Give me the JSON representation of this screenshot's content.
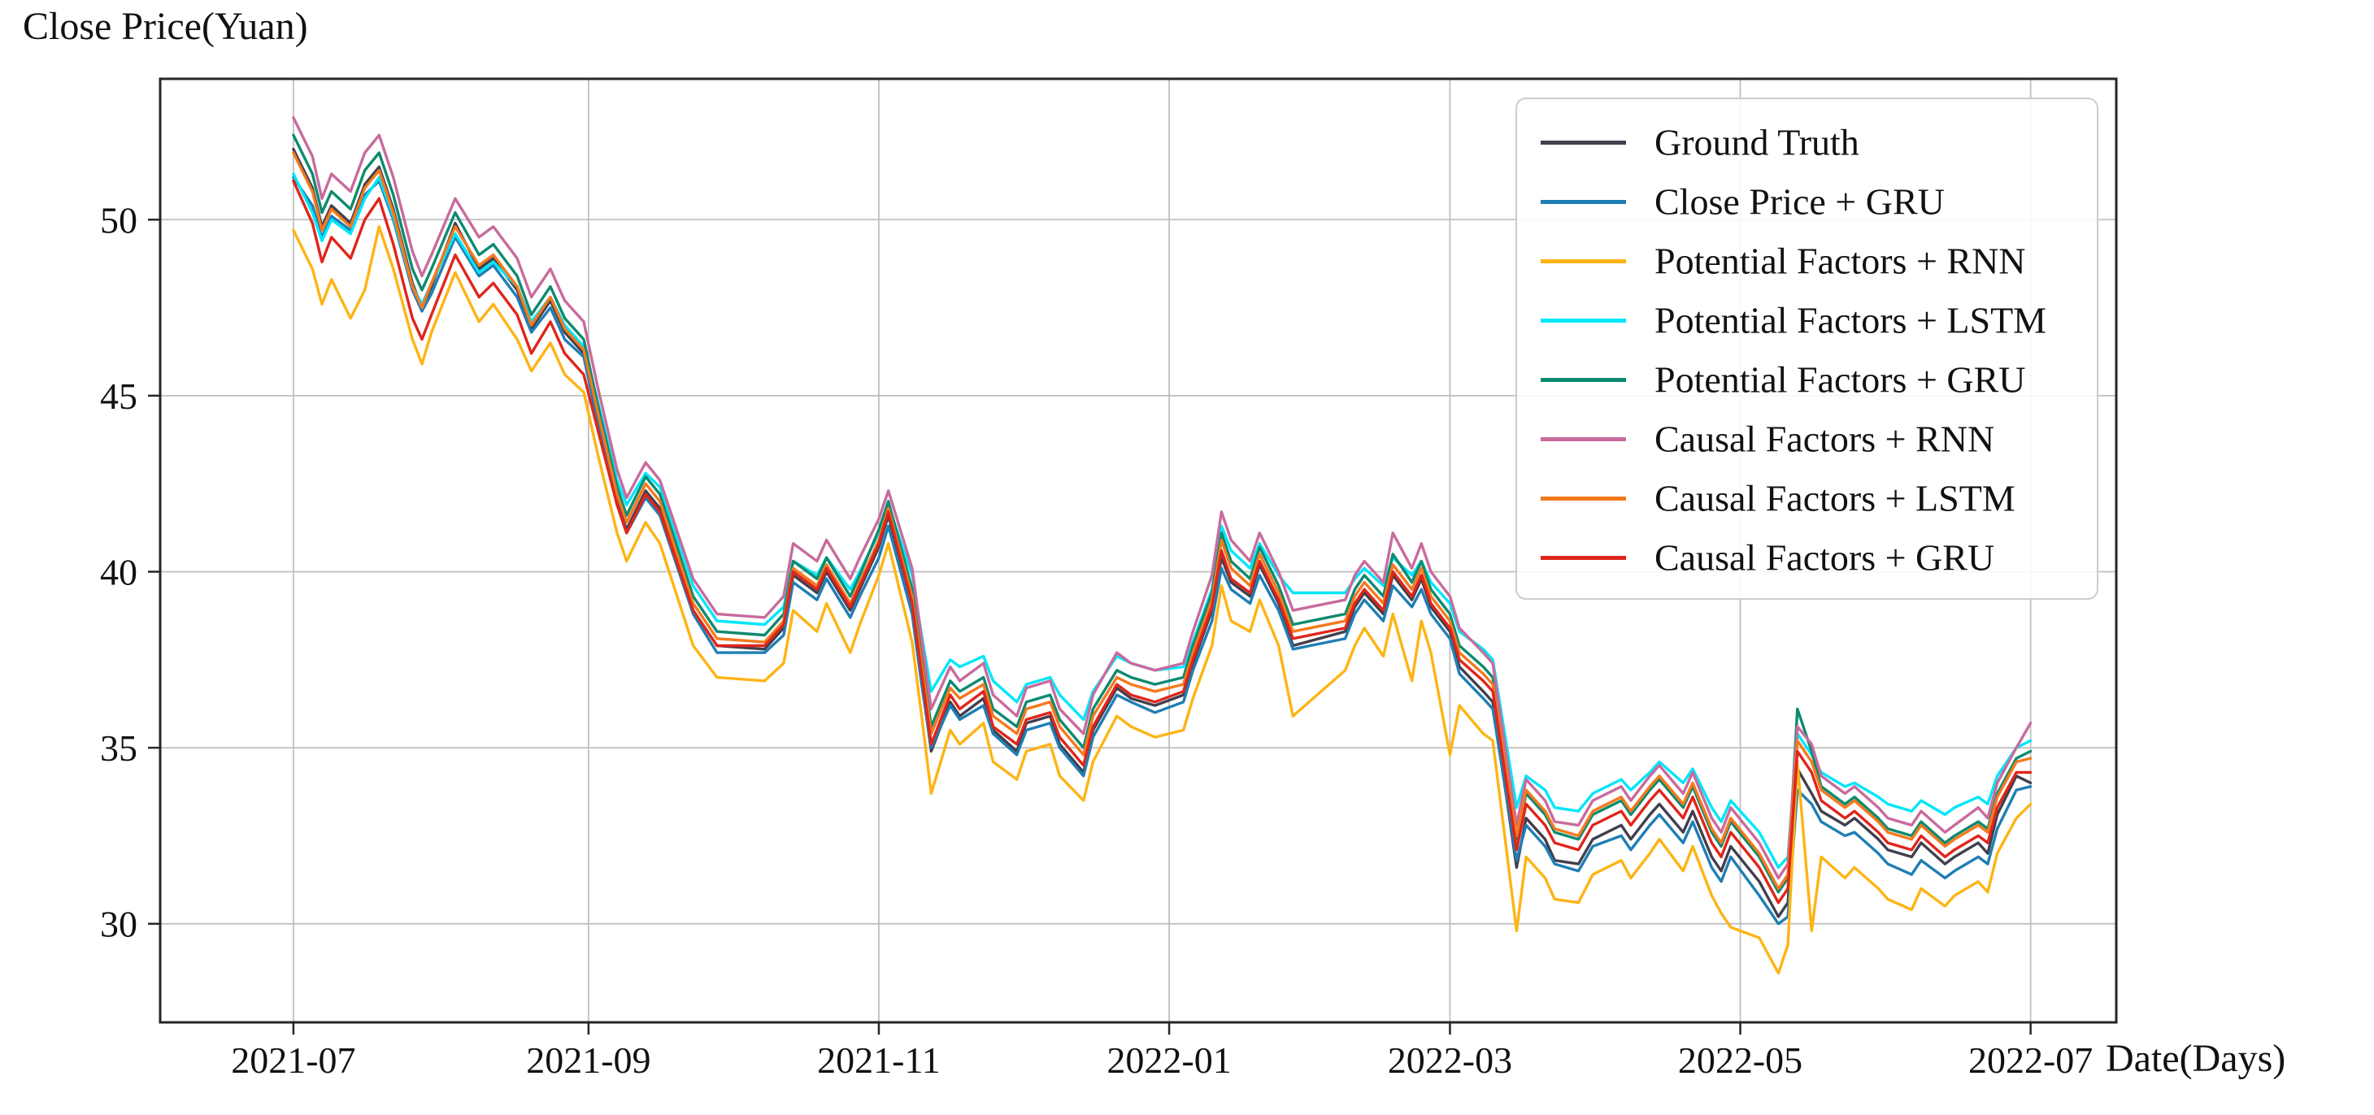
{
  "figure": {
    "kind": "static-line-chart-figure",
    "background": "#ffffff",
    "grid_color": "#bfbfbf",
    "spine_color": "#262626",
    "legend_border_color": "#cccccc",
    "legend_background": "#ffffff"
  },
  "chart_data": {
    "type": "line",
    "title": "",
    "ylabel": "Close Price(Yuan)",
    "xlabel": "Date(Days)",
    "ylim": [
      27.2,
      54.0
    ],
    "xlim": [
      "2021-06-03",
      "2022-07-19"
    ],
    "grid": true,
    "legend_position": "upper right",
    "y_ticks": [
      30,
      35,
      40,
      45,
      50
    ],
    "x_ticks": [
      {
        "label": "2021-07",
        "date": "2021-07-01"
      },
      {
        "label": "2021-09",
        "date": "2021-09-01"
      },
      {
        "label": "2021-11",
        "date": "2021-11-01"
      },
      {
        "label": "2022-01",
        "date": "2022-01-01"
      },
      {
        "label": "2022-03",
        "date": "2022-03-01"
      },
      {
        "label": "2022-05",
        "date": "2022-05-01"
      },
      {
        "label": "2022-07",
        "date": "2022-07-01"
      }
    ],
    "x": [
      "2021-07-01",
      "2021-07-05",
      "2021-07-07",
      "2021-07-09",
      "2021-07-13",
      "2021-07-16",
      "2021-07-19",
      "2021-07-22",
      "2021-07-26",
      "2021-07-28",
      "2021-07-30",
      "2021-08-04",
      "2021-08-09",
      "2021-08-12",
      "2021-08-17",
      "2021-08-20",
      "2021-08-24",
      "2021-08-27",
      "2021-08-31",
      "2021-09-03",
      "2021-09-07",
      "2021-09-09",
      "2021-09-13",
      "2021-09-16",
      "2021-09-23",
      "2021-09-28",
      "2021-10-08",
      "2021-10-12",
      "2021-10-14",
      "2021-10-19",
      "2021-10-21",
      "2021-10-26",
      "2021-10-28",
      "2021-11-01",
      "2021-11-03",
      "2021-11-08",
      "2021-11-10",
      "2021-11-12",
      "2021-11-16",
      "2021-11-18",
      "2021-11-23",
      "2021-11-25",
      "2021-11-30",
      "2021-12-02",
      "2021-12-07",
      "2021-12-09",
      "2021-12-14",
      "2021-12-16",
      "2021-12-21",
      "2021-12-24",
      "2021-12-29",
      "2022-01-04",
      "2022-01-06",
      "2022-01-10",
      "2022-01-12",
      "2022-01-14",
      "2022-01-18",
      "2022-01-20",
      "2022-01-24",
      "2022-01-27",
      "2022-02-07",
      "2022-02-09",
      "2022-02-11",
      "2022-02-15",
      "2022-02-17",
      "2022-02-21",
      "2022-02-23",
      "2022-02-25",
      "2022-03-01",
      "2022-03-03",
      "2022-03-08",
      "2022-03-10",
      "2022-03-15",
      "2022-03-17",
      "2022-03-21",
      "2022-03-23",
      "2022-03-28",
      "2022-03-31",
      "2022-04-06",
      "2022-04-08",
      "2022-04-12",
      "2022-04-14",
      "2022-04-19",
      "2022-04-21",
      "2022-04-25",
      "2022-04-27",
      "2022-04-29",
      "2022-05-05",
      "2022-05-09",
      "2022-05-11",
      "2022-05-13",
      "2022-05-16",
      "2022-05-18",
      "2022-05-23",
      "2022-05-25",
      "2022-05-30",
      "2022-06-01",
      "2022-06-06",
      "2022-06-08",
      "2022-06-13",
      "2022-06-15",
      "2022-06-20",
      "2022-06-22",
      "2022-06-24",
      "2022-06-28",
      "2022-07-01"
    ],
    "series": [
      {
        "name": "Ground Truth",
        "color": "#413f4d",
        "values": [
          52.0,
          50.9,
          49.8,
          50.4,
          49.9,
          51.0,
          51.5,
          50.3,
          48.2,
          47.5,
          48.1,
          49.9,
          48.6,
          48.9,
          48.0,
          46.9,
          47.7,
          46.8,
          46.2,
          44.3,
          42.0,
          41.2,
          42.3,
          41.8,
          38.9,
          37.9,
          37.8,
          38.4,
          39.9,
          39.4,
          40.0,
          38.9,
          39.5,
          40.7,
          41.6,
          38.9,
          36.9,
          34.9,
          36.3,
          35.9,
          36.4,
          35.5,
          34.9,
          35.7,
          35.9,
          35.1,
          34.3,
          35.5,
          36.7,
          36.4,
          36.2,
          36.5,
          37.4,
          38.9,
          40.4,
          39.7,
          39.3,
          40.2,
          39.1,
          37.9,
          38.3,
          39.0,
          39.4,
          38.8,
          39.9,
          39.2,
          39.8,
          39.0,
          38.3,
          37.3,
          36.6,
          36.3,
          31.6,
          33.0,
          32.4,
          31.8,
          31.7,
          32.4,
          32.8,
          32.4,
          33.1,
          33.4,
          32.6,
          33.2,
          31.9,
          31.5,
          32.2,
          31.2,
          30.2,
          30.6,
          34.4,
          33.7,
          33.2,
          32.8,
          33.0,
          32.4,
          32.1,
          31.9,
          32.3,
          31.7,
          31.9,
          32.3,
          32.0,
          33.1,
          34.2,
          34.0
        ]
      },
      {
        "name": "Close Price + GRU",
        "color": "#1f7eb4",
        "values": [
          51.2,
          50.4,
          49.5,
          50.1,
          49.7,
          50.7,
          51.1,
          50.0,
          48.0,
          47.4,
          47.9,
          49.5,
          48.4,
          48.7,
          47.8,
          46.8,
          47.5,
          46.6,
          46.1,
          44.2,
          41.9,
          41.1,
          42.1,
          41.6,
          38.8,
          37.7,
          37.7,
          38.2,
          39.7,
          39.2,
          39.8,
          38.7,
          39.3,
          40.4,
          41.3,
          38.8,
          36.8,
          35.0,
          36.2,
          35.8,
          36.2,
          35.4,
          34.8,
          35.5,
          35.7,
          35.0,
          34.2,
          35.3,
          36.5,
          36.3,
          36.0,
          36.3,
          37.2,
          38.6,
          40.1,
          39.5,
          39.1,
          39.9,
          38.9,
          37.8,
          38.1,
          38.8,
          39.2,
          38.6,
          39.6,
          39.0,
          39.5,
          38.8,
          38.1,
          37.1,
          36.4,
          36.1,
          31.8,
          32.8,
          32.2,
          31.7,
          31.5,
          32.2,
          32.5,
          32.1,
          32.8,
          33.1,
          32.3,
          32.9,
          31.6,
          31.2,
          31.9,
          30.8,
          30.0,
          30.2,
          33.8,
          33.4,
          32.9,
          32.5,
          32.6,
          32.0,
          31.7,
          31.4,
          31.8,
          31.3,
          31.5,
          31.9,
          31.7,
          32.7,
          33.8,
          33.9
        ]
      },
      {
        "name": "Potential Factors + RNN",
        "color": "#fdb414",
        "values": [
          49.7,
          48.6,
          47.6,
          48.3,
          47.2,
          48.0,
          49.8,
          48.6,
          46.6,
          45.9,
          46.8,
          48.5,
          47.1,
          47.6,
          46.6,
          45.7,
          46.5,
          45.6,
          45.1,
          43.3,
          41.1,
          40.3,
          41.4,
          40.8,
          37.9,
          37.0,
          36.9,
          37.4,
          38.9,
          38.3,
          39.1,
          37.7,
          38.5,
          39.9,
          40.8,
          38.0,
          35.9,
          33.7,
          35.5,
          35.1,
          35.7,
          34.6,
          34.1,
          34.9,
          35.1,
          34.2,
          33.5,
          34.6,
          35.9,
          35.6,
          35.3,
          35.5,
          36.4,
          37.9,
          39.6,
          38.6,
          38.3,
          39.2,
          37.9,
          35.9,
          37.2,
          37.9,
          38.4,
          37.6,
          38.8,
          36.9,
          38.6,
          37.7,
          34.8,
          36.2,
          35.4,
          35.2,
          29.8,
          31.9,
          31.3,
          30.7,
          30.6,
          31.4,
          31.8,
          31.3,
          32.0,
          32.4,
          31.5,
          32.2,
          30.8,
          30.3,
          29.9,
          29.6,
          28.6,
          29.4,
          34.6,
          29.8,
          31.9,
          31.3,
          31.6,
          31.0,
          30.7,
          30.4,
          31.0,
          30.5,
          30.8,
          31.2,
          30.9,
          32.0,
          33.0,
          33.4
        ]
      },
      {
        "name": "Potential Factors + LSTM",
        "color": "#00e6fa",
        "values": [
          51.3,
          50.2,
          49.4,
          50.0,
          49.6,
          50.6,
          51.2,
          50.1,
          48.1,
          47.6,
          48.2,
          49.6,
          48.5,
          48.8,
          48.1,
          47.1,
          47.8,
          47.0,
          46.4,
          44.8,
          42.6,
          41.9,
          42.8,
          42.4,
          39.6,
          38.6,
          38.5,
          39.0,
          40.3,
          39.9,
          40.4,
          39.5,
          40.0,
          41.1,
          41.9,
          39.9,
          38.2,
          36.6,
          37.5,
          37.3,
          37.6,
          36.9,
          36.3,
          36.8,
          37.0,
          36.5,
          35.8,
          36.6,
          37.6,
          37.4,
          37.2,
          37.3,
          38.0,
          39.5,
          41.3,
          40.6,
          40.1,
          40.8,
          39.9,
          39.4,
          39.4,
          39.8,
          40.1,
          39.6,
          40.4,
          39.9,
          40.3,
          39.7,
          39.1,
          38.3,
          37.8,
          37.5,
          33.3,
          34.2,
          33.8,
          33.3,
          33.2,
          33.7,
          34.1,
          33.8,
          34.3,
          34.6,
          34.0,
          34.4,
          33.3,
          32.9,
          33.5,
          32.6,
          31.6,
          31.9,
          35.4,
          34.8,
          34.3,
          33.9,
          34.0,
          33.6,
          33.4,
          33.2,
          33.5,
          33.1,
          33.3,
          33.6,
          33.4,
          34.2,
          35.0,
          35.2
        ]
      },
      {
        "name": "Potential Factors + GRU",
        "color": "#0d8a70",
        "values": [
          52.4,
          51.3,
          50.2,
          50.8,
          50.3,
          51.4,
          51.9,
          50.7,
          48.6,
          48.0,
          48.6,
          50.2,
          49.0,
          49.3,
          48.4,
          47.3,
          48.1,
          47.2,
          46.6,
          44.7,
          42.4,
          41.6,
          42.7,
          42.2,
          39.3,
          38.3,
          38.2,
          38.8,
          40.3,
          39.8,
          40.4,
          39.3,
          39.9,
          41.2,
          42.0,
          39.5,
          37.6,
          35.6,
          36.9,
          36.6,
          37.0,
          36.1,
          35.6,
          36.3,
          36.5,
          35.8,
          35.0,
          36.1,
          37.2,
          37.0,
          36.8,
          37.0,
          37.9,
          39.4,
          41.1,
          40.3,
          39.8,
          40.7,
          39.6,
          38.5,
          38.8,
          39.5,
          39.9,
          39.3,
          40.5,
          39.7,
          40.3,
          39.5,
          38.8,
          37.9,
          37.3,
          37.0,
          32.4,
          33.7,
          33.1,
          32.6,
          32.4,
          33.1,
          33.5,
          33.1,
          33.8,
          34.1,
          33.3,
          33.9,
          32.6,
          32.2,
          32.9,
          31.9,
          30.9,
          31.3,
          36.1,
          34.9,
          33.9,
          33.4,
          33.6,
          33.0,
          32.7,
          32.5,
          32.9,
          32.3,
          32.5,
          32.9,
          32.7,
          33.7,
          34.7,
          34.9
        ]
      },
      {
        "name": "Causal Factors + RNN",
        "color": "#c86b9d",
        "values": [
          52.9,
          51.8,
          50.6,
          51.3,
          50.8,
          51.9,
          52.4,
          51.2,
          49.1,
          48.4,
          49.0,
          50.6,
          49.5,
          49.8,
          48.9,
          47.8,
          48.6,
          47.7,
          47.1,
          45.2,
          42.9,
          42.1,
          43.1,
          42.6,
          39.8,
          38.8,
          38.7,
          39.3,
          40.8,
          40.3,
          40.9,
          39.8,
          40.4,
          41.5,
          42.3,
          40.1,
          38.1,
          36.1,
          37.3,
          36.9,
          37.4,
          36.5,
          35.9,
          36.7,
          36.9,
          36.1,
          35.4,
          36.5,
          37.7,
          37.4,
          37.2,
          37.4,
          38.3,
          39.9,
          41.7,
          40.9,
          40.3,
          41.1,
          40.0,
          38.9,
          39.2,
          39.9,
          40.3,
          39.7,
          41.1,
          40.1,
          40.8,
          40.0,
          39.3,
          38.4,
          37.7,
          37.4,
          32.8,
          34.1,
          33.5,
          32.9,
          32.8,
          33.5,
          33.9,
          33.5,
          34.2,
          34.5,
          33.7,
          34.3,
          33.0,
          32.6,
          33.3,
          32.3,
          31.3,
          31.7,
          35.6,
          35.1,
          34.2,
          33.7,
          33.9,
          33.3,
          33.0,
          32.8,
          33.2,
          32.6,
          32.8,
          33.3,
          33.0,
          34.0,
          35.0,
          35.7
        ]
      },
      {
        "name": "Causal Factors + LSTM",
        "color": "#f5791d",
        "values": [
          51.9,
          50.8,
          49.7,
          50.3,
          49.8,
          50.9,
          51.4,
          50.2,
          48.1,
          47.5,
          48.2,
          49.8,
          48.7,
          49.0,
          48.1,
          47.0,
          47.8,
          46.9,
          46.3,
          44.5,
          42.2,
          41.4,
          42.5,
          42.0,
          39.1,
          38.1,
          38.0,
          38.6,
          40.1,
          39.6,
          40.2,
          39.1,
          39.7,
          40.9,
          41.8,
          39.3,
          37.4,
          35.4,
          36.7,
          36.4,
          36.8,
          35.9,
          35.4,
          36.1,
          36.3,
          35.6,
          34.8,
          35.9,
          37.0,
          36.8,
          36.6,
          36.8,
          37.7,
          39.2,
          40.9,
          40.1,
          39.6,
          40.5,
          39.4,
          38.3,
          38.6,
          39.3,
          39.7,
          39.1,
          40.2,
          39.5,
          40.1,
          39.3,
          38.6,
          37.7,
          37.1,
          36.8,
          32.5,
          33.8,
          33.2,
          32.7,
          32.5,
          33.2,
          33.6,
          33.2,
          33.9,
          34.2,
          33.4,
          34.0,
          32.7,
          32.3,
          33.0,
          32.0,
          31.0,
          31.4,
          35.2,
          34.6,
          33.8,
          33.3,
          33.5,
          32.9,
          32.6,
          32.4,
          32.8,
          32.2,
          32.4,
          32.8,
          32.6,
          33.6,
          34.6,
          34.7
        ]
      },
      {
        "name": "Causal Factors + GRU",
        "color": "#e0251b",
        "values": [
          51.1,
          49.9,
          48.8,
          49.5,
          48.9,
          50.0,
          50.6,
          49.3,
          47.2,
          46.6,
          47.3,
          49.0,
          47.8,
          48.2,
          47.3,
          46.2,
          47.1,
          46.2,
          45.6,
          44.0,
          41.9,
          41.1,
          42.2,
          41.7,
          38.9,
          37.9,
          37.9,
          38.5,
          40.0,
          39.5,
          40.1,
          39.0,
          39.6,
          40.8,
          41.7,
          39.1,
          37.1,
          35.1,
          36.5,
          36.1,
          36.6,
          35.6,
          35.1,
          35.8,
          36.0,
          35.3,
          34.5,
          35.6,
          36.8,
          36.5,
          36.3,
          36.6,
          37.5,
          39.0,
          40.6,
          39.8,
          39.4,
          40.3,
          39.2,
          38.1,
          38.4,
          39.1,
          39.5,
          38.9,
          40.0,
          39.3,
          39.9,
          39.1,
          38.4,
          37.5,
          36.9,
          36.6,
          32.1,
          33.4,
          32.8,
          32.3,
          32.1,
          32.8,
          33.2,
          32.8,
          33.5,
          33.8,
          33.0,
          33.6,
          32.3,
          31.9,
          32.6,
          31.6,
          30.6,
          31.0,
          34.9,
          34.3,
          33.5,
          33.0,
          33.2,
          32.6,
          32.3,
          32.1,
          32.5,
          31.9,
          32.1,
          32.5,
          32.3,
          33.3,
          34.3,
          34.3
        ]
      }
    ]
  }
}
